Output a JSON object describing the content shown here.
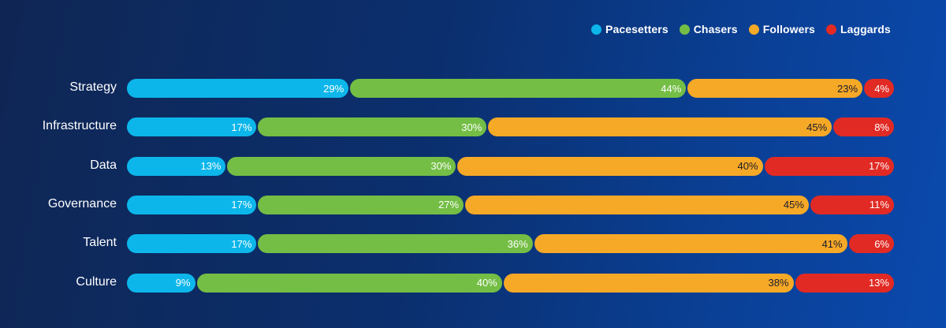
{
  "chart_data": {
    "type": "bar",
    "orientation": "horizontal",
    "stacked": true,
    "normalized": true,
    "categories": [
      "Strategy",
      "Infrastructure",
      "Data",
      "Governance",
      "Talent",
      "Culture"
    ],
    "series": [
      {
        "name": "Pacesetters",
        "color": "#0cb6ea",
        "label_color": "#ffffff",
        "values": [
          29,
          17,
          13,
          17,
          17,
          9
        ]
      },
      {
        "name": "Chasers",
        "color": "#74be45",
        "label_color": "#ffffff",
        "values": [
          44,
          30,
          30,
          27,
          36,
          40
        ]
      },
      {
        "name": "Followers",
        "color": "#f6a927",
        "label_color": "#1a1a2e",
        "values": [
          23,
          45,
          40,
          45,
          41,
          38
        ]
      },
      {
        "name": "Laggards",
        "color": "#e12a24",
        "label_color": "#ffffff",
        "values": [
          4,
          8,
          17,
          11,
          6,
          13
        ]
      }
    ],
    "value_suffix": "%",
    "legend_position": "top-right",
    "xlim": [
      0,
      100
    ]
  }
}
